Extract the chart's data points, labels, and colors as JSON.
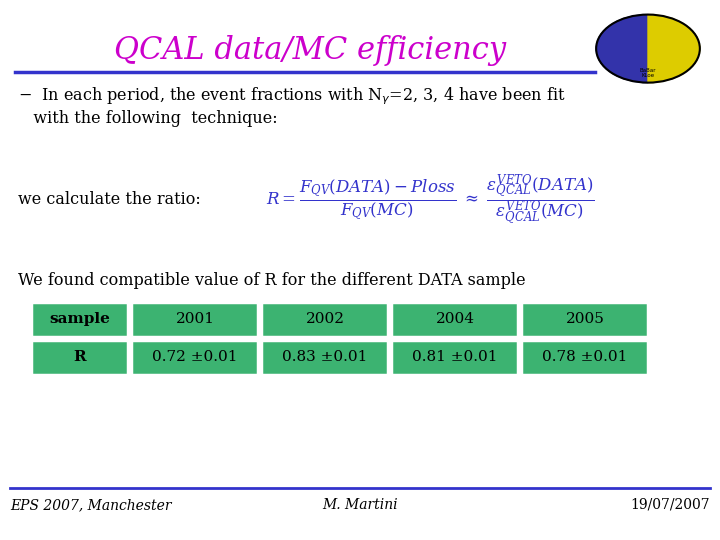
{
  "title": "QCAL data/MC efficiency",
  "title_color": "#cc00cc",
  "title_fontsize": 22,
  "line_color": "#3333cc",
  "bg_color": "#ffffff",
  "bullet_line1": "- In each period, the event fractions with Nγ=2, 3, 4 have been fit",
  "bullet_line2": "  with the following  technique:",
  "ratio_label": "we calculate the ratio:",
  "formula_color": "#3333cc",
  "compatible_text": "We found compatible value of R for the different DATA sample",
  "table_headers": [
    "sample",
    "2001",
    "2002",
    "2004",
    "2005"
  ],
  "table_row": [
    "R",
    "0.72 ±0.01",
    "0.83 ±0.01",
    "0.81 ±0.01",
    "0.78 ±0.01"
  ],
  "table_header_bg": "#3cb371",
  "table_row_bg": "#3cb371",
  "table_text_color": "#000000",
  "table_border_color": "#ffffff",
  "footer_left": "EPS 2007, Manchester",
  "footer_center": "M. Martini",
  "footer_right": "19/07/2007",
  "footer_fontsize": 10,
  "footer_line_color": "#3333cc"
}
